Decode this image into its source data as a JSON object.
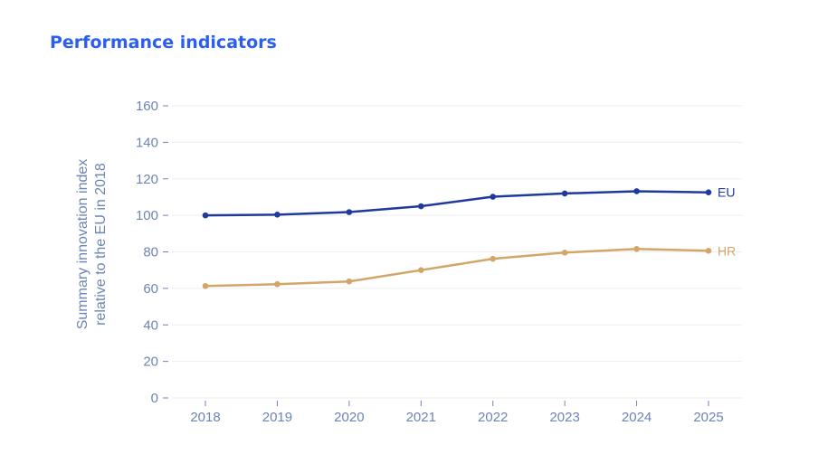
{
  "page": {
    "title": "Performance indicators"
  },
  "colors": {
    "title": "#2b5ff0",
    "axis_text": "#6c85b3",
    "grid": "#eeeeee",
    "eu_line": "#1f3a9e",
    "hr_line": "#d2a668"
  },
  "chart_data": {
    "type": "line",
    "title": "",
    "xlabel": "",
    "ylabel": "Summary innovation index relative to the EU in 2018",
    "ylabel_lines": [
      "Summary innovation index",
      "relative to the EU in 2018"
    ],
    "x": [
      "2018",
      "2019",
      "2020",
      "2021",
      "2022",
      "2023",
      "2024",
      "2025"
    ],
    "ylim": [
      0,
      160
    ],
    "yticks": [
      "0",
      "20",
      "40",
      "60",
      "80",
      "100",
      "120",
      "140",
      "160"
    ],
    "grid": true,
    "legend": "inline labels at line ends",
    "series": [
      {
        "name": "EU",
        "color": "#1f3a9e",
        "values": [
          100,
          100.4,
          101.8,
          105,
          110.2,
          112,
          113.2,
          112.6
        ]
      },
      {
        "name": "HR",
        "color": "#d2a668",
        "values": [
          61.3,
          62.3,
          63.8,
          70,
          76.2,
          79.6,
          81.6,
          80.6
        ]
      }
    ]
  }
}
